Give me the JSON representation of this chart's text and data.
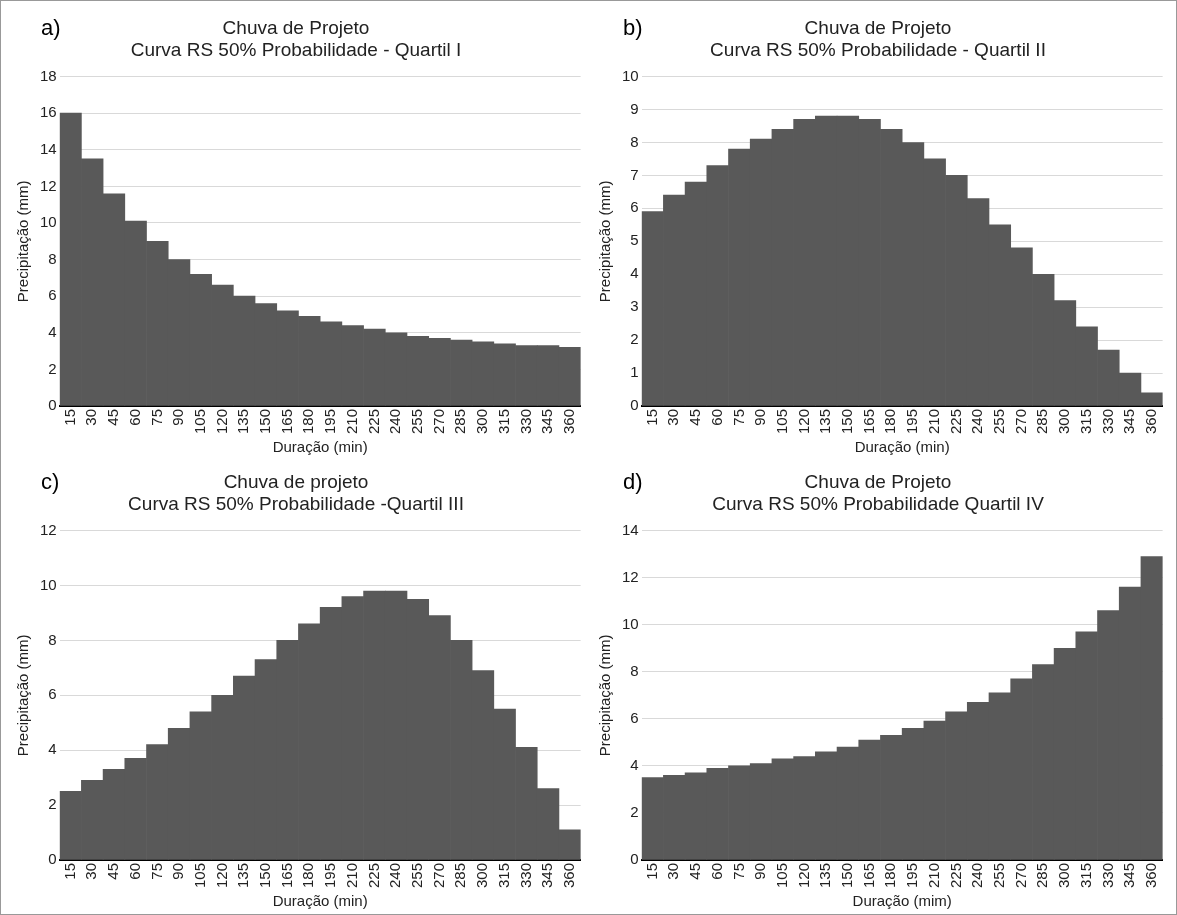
{
  "chart_data": [
    {
      "type": "bar",
      "title": "Chuva de Projeto",
      "subtitle": "Curva RS 50% Probabilidade - Quartil I",
      "annotations": [
        "a)"
      ],
      "xlabel": "Duração (min)",
      "ylabel": "Precipitação (mm)",
      "categories": [
        "15",
        "30",
        "45",
        "60",
        "75",
        "90",
        "105",
        "120",
        "135",
        "150",
        "165",
        "180",
        "195",
        "210",
        "225",
        "240",
        "255",
        "270",
        "285",
        "300",
        "315",
        "330",
        "345",
        "360"
      ],
      "values": [
        16,
        13.5,
        11.6,
        10.1,
        9.0,
        8.0,
        7.2,
        6.6,
        6.0,
        5.6,
        5.2,
        4.9,
        4.6,
        4.4,
        4.2,
        4.0,
        3.8,
        3.7,
        3.6,
        3.5,
        3.4,
        3.3,
        3.3,
        3.2
      ],
      "color": "#595959",
      "ylim": [
        0,
        18
      ],
      "yticks": [
        0,
        2,
        4,
        6,
        8,
        10,
        12,
        14,
        16,
        18
      ],
      "grid": "y",
      "legend": false
    },
    {
      "type": "bar",
      "title": "Chuva de Projeto",
      "subtitle": "Curva RS 50% Probabilidade - Quartil II",
      "annotations": [
        "b)"
      ],
      "xlabel": "Duração (min)",
      "ylabel": "Precipitação (mm)",
      "categories": [
        "15",
        "30",
        "45",
        "60",
        "75",
        "90",
        "105",
        "120",
        "135",
        "150",
        "165",
        "180",
        "195",
        "210",
        "225",
        "240",
        "255",
        "270",
        "285",
        "300",
        "315",
        "330",
        "345",
        "360"
      ],
      "values": [
        5.9,
        6.4,
        6.8,
        7.3,
        7.8,
        8.1,
        8.4,
        8.7,
        8.8,
        8.8,
        8.7,
        8.4,
        8.0,
        7.5,
        7.0,
        6.3,
        5.5,
        4.8,
        4.0,
        3.2,
        2.4,
        1.7,
        1.0,
        0.4
      ],
      "color": "#595959",
      "ylim": [
        0,
        10
      ],
      "yticks": [
        0,
        1,
        2,
        3,
        4,
        5,
        6,
        7,
        8,
        9,
        10
      ],
      "grid": "y",
      "legend": false
    },
    {
      "type": "bar",
      "title": "Chuva de projeto",
      "subtitle": "Curva RS 50% Probabilidade -Quartil III",
      "annotations": [
        "c)"
      ],
      "xlabel": "Duração (min)",
      "ylabel": "Precipitação (mm)",
      "categories": [
        "15",
        "30",
        "45",
        "60",
        "75",
        "90",
        "105",
        "120",
        "135",
        "150",
        "165",
        "180",
        "195",
        "210",
        "225",
        "240",
        "255",
        "270",
        "285",
        "300",
        "315",
        "330",
        "345",
        "360"
      ],
      "values": [
        2.5,
        2.9,
        3.3,
        3.7,
        4.2,
        4.8,
        5.4,
        6.0,
        6.7,
        7.3,
        8.0,
        8.6,
        9.2,
        9.6,
        9.8,
        9.8,
        9.5,
        8.9,
        8.0,
        6.9,
        5.5,
        4.1,
        2.6,
        1.1
      ],
      "color": "#595959",
      "ylim": [
        0,
        12
      ],
      "yticks": [
        0,
        2,
        4,
        6,
        8,
        10,
        12
      ],
      "grid": "y",
      "legend": false
    },
    {
      "type": "bar",
      "title": "Chuva de Projeto",
      "subtitle": "Curva RS 50% Probabilidade Quartil IV",
      "annotations": [
        "d)"
      ],
      "xlabel": "Duração (mim)",
      "ylabel": "Precipitação (mm)",
      "categories": [
        "15",
        "30",
        "45",
        "60",
        "75",
        "90",
        "105",
        "120",
        "135",
        "150",
        "165",
        "180",
        "195",
        "210",
        "225",
        "240",
        "255",
        "270",
        "285",
        "300",
        "315",
        "330",
        "345",
        "360"
      ],
      "values": [
        3.5,
        3.6,
        3.7,
        3.9,
        4.0,
        4.1,
        4.3,
        4.4,
        4.6,
        4.8,
        5.1,
        5.3,
        5.6,
        5.9,
        6.3,
        6.7,
        7.1,
        7.7,
        8.3,
        9.0,
        9.7,
        10.6,
        11.6,
        12.9
      ],
      "color": "#595959",
      "ylim": [
        0,
        14
      ],
      "yticks": [
        0,
        2,
        4,
        6,
        8,
        10,
        12,
        14
      ],
      "grid": "y",
      "legend": false
    }
  ]
}
